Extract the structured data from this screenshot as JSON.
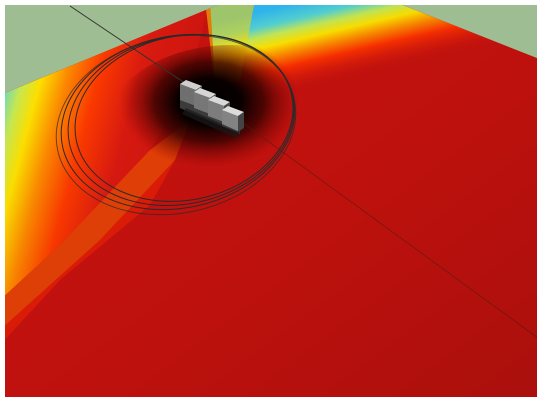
{
  "image": {
    "description_type": "3d-rendered-heatmap",
    "colors": {
      "sky": "#9fbd92",
      "frame": "#ffffff",
      "ground_hot": "#cc1410",
      "ground_mid": "#ff8a00",
      "ground_warm": "#ffe200",
      "ground_cool": "#35c2f0",
      "shadow_core": "#050000",
      "ring_stroke": "#2a2a2a",
      "device_body": "#7d7d7d",
      "device_light": "#cfcfcf",
      "device_dark": "#3b3b3b"
    }
  }
}
